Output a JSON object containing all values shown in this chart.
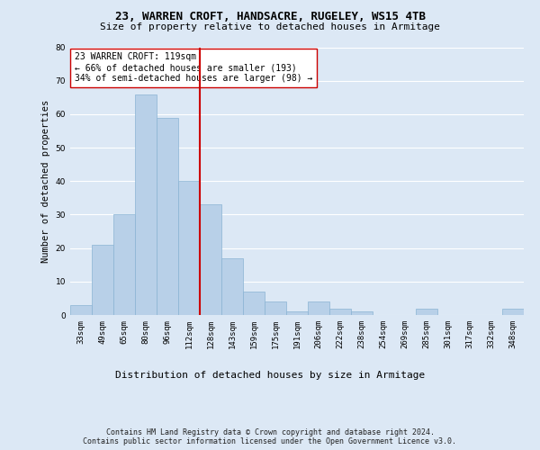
{
  "title1": "23, WARREN CROFT, HANDSACRE, RUGELEY, WS15 4TB",
  "title2": "Size of property relative to detached houses in Armitage",
  "xlabel": "Distribution of detached houses by size in Armitage",
  "ylabel": "Number of detached properties",
  "categories": [
    "33sqm",
    "49sqm",
    "65sqm",
    "80sqm",
    "96sqm",
    "112sqm",
    "128sqm",
    "143sqm",
    "159sqm",
    "175sqm",
    "191sqm",
    "206sqm",
    "222sqm",
    "238sqm",
    "254sqm",
    "269sqm",
    "285sqm",
    "301sqm",
    "317sqm",
    "332sqm",
    "348sqm"
  ],
  "values": [
    3,
    21,
    30,
    66,
    59,
    40,
    33,
    17,
    7,
    4,
    1,
    4,
    2,
    1,
    0,
    0,
    2,
    0,
    0,
    0,
    2
  ],
  "bar_color": "#b8d0e8",
  "bar_edge_color": "#8ab4d4",
  "vline_index": 5.5,
  "vline_color": "#cc0000",
  "annotation_text": "23 WARREN CROFT: 119sqm\n← 66% of detached houses are smaller (193)\n34% of semi-detached houses are larger (98) →",
  "annotation_box_color": "#ffffff",
  "annotation_box_edge": "#cc0000",
  "footer1": "Contains HM Land Registry data © Crown copyright and database right 2024.",
  "footer2": "Contains public sector information licensed under the Open Government Licence v3.0.",
  "ylim": [
    0,
    80
  ],
  "background_color": "#dce8f5",
  "plot_bg_color": "#dce8f5",
  "grid_color": "#ffffff",
  "title1_fontsize": 9,
  "title2_fontsize": 8,
  "ylabel_fontsize": 7.5,
  "xlabel_fontsize": 8,
  "tick_fontsize": 6.5,
  "annotation_fontsize": 7,
  "footer_fontsize": 6
}
